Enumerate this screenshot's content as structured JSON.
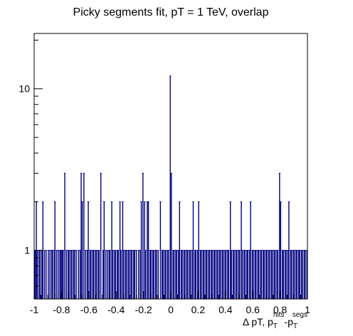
{
  "chart_data": {
    "type": "bar",
    "title": "Picky segments fit, pT = 1 TeV, overlap",
    "xlabel": {
      "prefix": "Δ pT, p",
      "sub1": "T",
      "sup1": "hits",
      "mid": "-p",
      "sub2": "T",
      "sup2": "segs"
    },
    "ylabel": "",
    "log_y": true,
    "xlim": [
      -1,
      1
    ],
    "ylim": [
      0.5,
      22
    ],
    "x_ticks": [
      -1,
      -0.8,
      -0.6,
      -0.4,
      -0.2,
      0,
      0.2,
      0.4,
      0.6,
      0.8,
      1
    ],
    "x_tick_labels": [
      "-1",
      "-0.8",
      "-0.6",
      "-0.4",
      "-0.2",
      "0",
      "0.2",
      "0.4",
      "0.6",
      "0.8",
      "1"
    ],
    "y_ticks": [
      1,
      10
    ],
    "y_tick_labels": [
      "1",
      "10"
    ],
    "line_color": "#000080",
    "entries": [
      {
        "x": -0.996,
        "y": 1
      },
      {
        "x": -0.988,
        "y": 1
      },
      {
        "x": -0.984,
        "y": 2
      },
      {
        "x": -0.976,
        "y": 1
      },
      {
        "x": -0.964,
        "y": 1
      },
      {
        "x": -0.956,
        "y": 1
      },
      {
        "x": -0.944,
        "y": 1
      },
      {
        "x": -0.936,
        "y": 2
      },
      {
        "x": -0.924,
        "y": 1
      },
      {
        "x": -0.912,
        "y": 1
      },
      {
        "x": -0.896,
        "y": 1
      },
      {
        "x": -0.884,
        "y": 1
      },
      {
        "x": -0.872,
        "y": 1
      },
      {
        "x": -0.864,
        "y": 1
      },
      {
        "x": -0.852,
        "y": 1
      },
      {
        "x": -0.848,
        "y": 2
      },
      {
        "x": -0.836,
        "y": 1
      },
      {
        "x": -0.824,
        "y": 1
      },
      {
        "x": -0.812,
        "y": 1
      },
      {
        "x": -0.804,
        "y": 1
      },
      {
        "x": -0.796,
        "y": 1
      },
      {
        "x": -0.788,
        "y": 1
      },
      {
        "x": -0.776,
        "y": 3
      },
      {
        "x": -0.764,
        "y": 1
      },
      {
        "x": -0.752,
        "y": 1
      },
      {
        "x": -0.744,
        "y": 1
      },
      {
        "x": -0.732,
        "y": 1
      },
      {
        "x": -0.724,
        "y": 1
      },
      {
        "x": -0.712,
        "y": 1
      },
      {
        "x": -0.704,
        "y": 1
      },
      {
        "x": -0.692,
        "y": 1
      },
      {
        "x": -0.676,
        "y": 1
      },
      {
        "x": -0.664,
        "y": 1
      },
      {
        "x": -0.656,
        "y": 3
      },
      {
        "x": -0.648,
        "y": 2
      },
      {
        "x": -0.636,
        "y": 3
      },
      {
        "x": -0.624,
        "y": 1
      },
      {
        "x": -0.612,
        "y": 1
      },
      {
        "x": -0.604,
        "y": 2
      },
      {
        "x": -0.592,
        "y": 1
      },
      {
        "x": -0.584,
        "y": 1
      },
      {
        "x": -0.572,
        "y": 1
      },
      {
        "x": -0.564,
        "y": 1
      },
      {
        "x": -0.552,
        "y": 1
      },
      {
        "x": -0.544,
        "y": 1
      },
      {
        "x": -0.532,
        "y": 1
      },
      {
        "x": -0.524,
        "y": 1
      },
      {
        "x": -0.512,
        "y": 3
      },
      {
        "x": -0.496,
        "y": 1
      },
      {
        "x": -0.488,
        "y": 2
      },
      {
        "x": -0.476,
        "y": 1
      },
      {
        "x": -0.464,
        "y": 1
      },
      {
        "x": -0.452,
        "y": 1
      },
      {
        "x": -0.444,
        "y": 1
      },
      {
        "x": -0.432,
        "y": 2
      },
      {
        "x": -0.424,
        "y": 1
      },
      {
        "x": -0.412,
        "y": 1
      },
      {
        "x": -0.404,
        "y": 1
      },
      {
        "x": -0.392,
        "y": 1
      },
      {
        "x": -0.384,
        "y": 1
      },
      {
        "x": -0.372,
        "y": 2
      },
      {
        "x": -0.364,
        "y": 1
      },
      {
        "x": -0.352,
        "y": 2
      },
      {
        "x": -0.344,
        "y": 1
      },
      {
        "x": -0.332,
        "y": 1
      },
      {
        "x": -0.324,
        "y": 1
      },
      {
        "x": -0.312,
        "y": 1
      },
      {
        "x": -0.304,
        "y": 1
      },
      {
        "x": -0.292,
        "y": 1
      },
      {
        "x": -0.284,
        "y": 1
      },
      {
        "x": -0.272,
        "y": 1
      },
      {
        "x": -0.264,
        "y": 1
      },
      {
        "x": -0.252,
        "y": 1
      },
      {
        "x": -0.236,
        "y": 1
      },
      {
        "x": -0.224,
        "y": 1
      },
      {
        "x": -0.216,
        "y": 2
      },
      {
        "x": -0.204,
        "y": 3
      },
      {
        "x": -0.192,
        "y": 2
      },
      {
        "x": -0.184,
        "y": 1
      },
      {
        "x": -0.172,
        "y": 2
      },
      {
        "x": -0.164,
        "y": 2
      },
      {
        "x": -0.152,
        "y": 1
      },
      {
        "x": -0.144,
        "y": 1
      },
      {
        "x": -0.132,
        "y": 1
      },
      {
        "x": -0.124,
        "y": 1
      },
      {
        "x": -0.112,
        "y": 1
      },
      {
        "x": -0.104,
        "y": 1
      },
      {
        "x": -0.092,
        "y": 1
      },
      {
        "x": -0.076,
        "y": 2
      },
      {
        "x": -0.064,
        "y": 1
      },
      {
        "x": -0.056,
        "y": 1
      },
      {
        "x": -0.044,
        "y": 1
      },
      {
        "x": -0.036,
        "y": 1
      },
      {
        "x": -0.024,
        "y": 1
      },
      {
        "x": -0.016,
        "y": 1
      },
      {
        "x": -0.004,
        "y": 12
      },
      {
        "x": 0.004,
        "y": 3
      },
      {
        "x": 0.016,
        "y": 1
      },
      {
        "x": 0.024,
        "y": 1
      },
      {
        "x": 0.036,
        "y": 1
      },
      {
        "x": 0.044,
        "y": 1
      },
      {
        "x": 0.056,
        "y": 1
      },
      {
        "x": 0.064,
        "y": 2
      },
      {
        "x": 0.076,
        "y": 1
      },
      {
        "x": 0.084,
        "y": 1
      },
      {
        "x": 0.096,
        "y": 1
      },
      {
        "x": 0.104,
        "y": 1
      },
      {
        "x": 0.116,
        "y": 1
      },
      {
        "x": 0.124,
        "y": 1
      },
      {
        "x": 0.136,
        "y": 1
      },
      {
        "x": 0.144,
        "y": 1
      },
      {
        "x": 0.156,
        "y": 1
      },
      {
        "x": 0.164,
        "y": 2
      },
      {
        "x": 0.176,
        "y": 1
      },
      {
        "x": 0.184,
        "y": 1
      },
      {
        "x": 0.196,
        "y": 1
      },
      {
        "x": 0.204,
        "y": 2
      },
      {
        "x": 0.216,
        "y": 1
      },
      {
        "x": 0.224,
        "y": 1
      },
      {
        "x": 0.236,
        "y": 1
      },
      {
        "x": 0.244,
        "y": 1
      },
      {
        "x": 0.256,
        "y": 1
      },
      {
        "x": 0.264,
        "y": 1
      },
      {
        "x": 0.276,
        "y": 1
      },
      {
        "x": 0.284,
        "y": 1
      },
      {
        "x": 0.296,
        "y": 1
      },
      {
        "x": 0.304,
        "y": 1
      },
      {
        "x": 0.316,
        "y": 1
      },
      {
        "x": 0.324,
        "y": 1
      },
      {
        "x": 0.336,
        "y": 1
      },
      {
        "x": 0.344,
        "y": 1
      },
      {
        "x": 0.356,
        "y": 1
      },
      {
        "x": 0.364,
        "y": 1
      },
      {
        "x": 0.376,
        "y": 1
      },
      {
        "x": 0.384,
        "y": 1
      },
      {
        "x": 0.396,
        "y": 1
      },
      {
        "x": 0.404,
        "y": 1
      },
      {
        "x": 0.416,
        "y": 1
      },
      {
        "x": 0.424,
        "y": 1
      },
      {
        "x": 0.436,
        "y": 2
      },
      {
        "x": 0.444,
        "y": 1
      },
      {
        "x": 0.456,
        "y": 1
      },
      {
        "x": 0.464,
        "y": 1
      },
      {
        "x": 0.476,
        "y": 1
      },
      {
        "x": 0.484,
        "y": 1
      },
      {
        "x": 0.496,
        "y": 1
      },
      {
        "x": 0.504,
        "y": 1
      },
      {
        "x": 0.516,
        "y": 2
      },
      {
        "x": 0.524,
        "y": 1
      },
      {
        "x": 0.536,
        "y": 1
      },
      {
        "x": 0.544,
        "y": 1
      },
      {
        "x": 0.556,
        "y": 1
      },
      {
        "x": 0.564,
        "y": 1
      },
      {
        "x": 0.576,
        "y": 1
      },
      {
        "x": 0.584,
        "y": 2
      },
      {
        "x": 0.596,
        "y": 1
      },
      {
        "x": 0.604,
        "y": 1
      },
      {
        "x": 0.616,
        "y": 1
      },
      {
        "x": 0.624,
        "y": 1
      },
      {
        "x": 0.636,
        "y": 1
      },
      {
        "x": 0.644,
        "y": 1
      },
      {
        "x": 0.656,
        "y": 1
      },
      {
        "x": 0.664,
        "y": 1
      },
      {
        "x": 0.676,
        "y": 1
      },
      {
        "x": 0.684,
        "y": 1
      },
      {
        "x": 0.696,
        "y": 1
      },
      {
        "x": 0.704,
        "y": 1
      },
      {
        "x": 0.716,
        "y": 1
      },
      {
        "x": 0.724,
        "y": 1
      },
      {
        "x": 0.736,
        "y": 1
      },
      {
        "x": 0.744,
        "y": 1
      },
      {
        "x": 0.756,
        "y": 1
      },
      {
        "x": 0.764,
        "y": 1
      },
      {
        "x": 0.776,
        "y": 1
      },
      {
        "x": 0.784,
        "y": 1
      },
      {
        "x": 0.796,
        "y": 3
      },
      {
        "x": 0.804,
        "y": 2
      },
      {
        "x": 0.816,
        "y": 1
      },
      {
        "x": 0.824,
        "y": 1
      },
      {
        "x": 0.836,
        "y": 1
      },
      {
        "x": 0.844,
        "y": 1
      },
      {
        "x": 0.856,
        "y": 1
      },
      {
        "x": 0.864,
        "y": 2
      },
      {
        "x": 0.876,
        "y": 1
      },
      {
        "x": 0.884,
        "y": 1
      },
      {
        "x": 0.896,
        "y": 1
      },
      {
        "x": 0.904,
        "y": 1
      },
      {
        "x": 0.916,
        "y": 1
      },
      {
        "x": 0.924,
        "y": 1
      },
      {
        "x": 0.936,
        "y": 1
      },
      {
        "x": 0.944,
        "y": 1
      },
      {
        "x": 0.956,
        "y": 1
      },
      {
        "x": 0.964,
        "y": 1
      },
      {
        "x": 0.976,
        "y": 1
      },
      {
        "x": 0.984,
        "y": 1
      },
      {
        "x": 0.996,
        "y": 1
      }
    ]
  }
}
